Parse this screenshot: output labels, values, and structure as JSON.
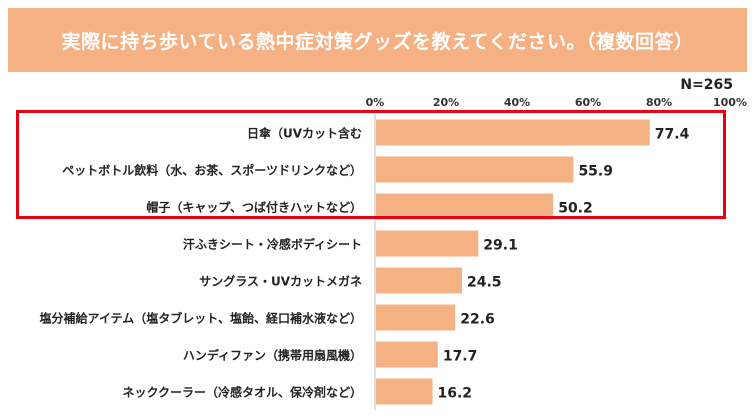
{
  "title": "実際に持ち歩いている熱中症対策グッズを教えてください。（複数回答）",
  "sample_size": "N=265",
  "colors": {
    "banner": "#f5b183",
    "bar": "#f4b183",
    "highlight": "#e60012"
  },
  "chart_data": {
    "type": "bar",
    "orientation": "horizontal",
    "categories": [
      "日傘（UVカット含む",
      "ペットボトル飲料（水、お茶、スポーツドリンクなど）",
      "帽子（キャップ、つば付きハットなど）",
      "汗ふきシート・冷感ボディシート",
      "サングラス・UVカットメガネ",
      "塩分補給アイテム（塩タブレット、塩飴、経口補水液など）",
      "ハンディファン（携帯用扇風機）",
      "ネッククーラー（冷感タオル、保冷剤など）"
    ],
    "values": [
      77.4,
      55.9,
      50.2,
      29.1,
      24.5,
      22.6,
      17.7,
      16.2
    ],
    "value_labels": [
      "77.4",
      "55.9",
      "50.2",
      "29.1",
      "24.5",
      "22.6",
      "17.7",
      "16.2"
    ],
    "xlim": [
      0,
      100
    ],
    "ticks": [
      0,
      20,
      40,
      60,
      80,
      100
    ],
    "tick_labels": [
      "0%",
      "20%",
      "40%",
      "60%",
      "80%",
      "100%"
    ],
    "highlighted_categories": [
      0,
      1,
      2
    ],
    "grid": false
  }
}
